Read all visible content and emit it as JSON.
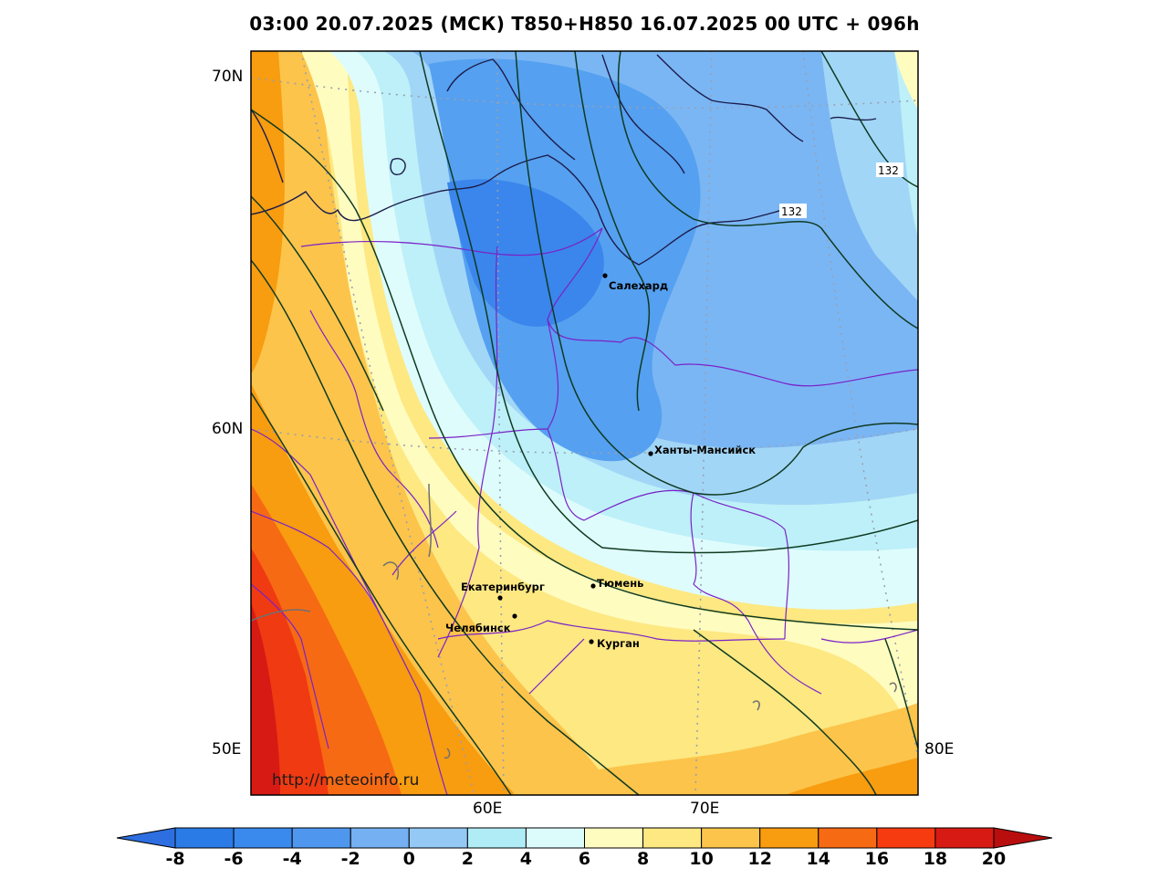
{
  "title": "03:00 20.07.2025 (МСК) T850+H850 16.07.2025 00 UTC + 096h",
  "axes": {
    "lat_labels": [
      "70N",
      "60N",
      "50E"
    ],
    "lon_labels_bottom": [
      "60E",
      "70E"
    ],
    "lon_label_right": "80E"
  },
  "cities": [
    {
      "name": "Салехард"
    },
    {
      "name": "Ханты-Мансийск"
    },
    {
      "name": "Екатеринбург"
    },
    {
      "name": "Тюмень"
    },
    {
      "name": "Челябинск"
    },
    {
      "name": "Курган"
    }
  ],
  "contour_labels": [
    "132",
    "132"
  ],
  "watermark": "http://meteoinfo.ru",
  "colorbar": {
    "ticks": [
      "-8",
      "-6",
      "-4",
      "-2",
      "0",
      "2",
      "4",
      "6",
      "8",
      "10",
      "12",
      "14",
      "16",
      "18",
      "20"
    ],
    "colors": [
      "#2b7be6",
      "#3a89ec",
      "#4f97ee",
      "#74b0f2",
      "#94c9f5",
      "#b0ecf6",
      "#dcfcfc",
      "#fffcc0",
      "#fde882",
      "#fcc44a",
      "#f89c10",
      "#f76a14",
      "#f63b10",
      "#d81a14"
    ],
    "under_color": "#2d6fe0",
    "over_color": "#b80e0e"
  },
  "field_colors": {
    "cold1": "#3a86ec",
    "cold2": "#55a0f0",
    "cool": "#7ab6f4",
    "light": "#a2d6f6",
    "cyan": "#bdf0f8",
    "pale": "#dffcfc",
    "cream": "#fffcc0",
    "yellow": "#fde882",
    "lorange": "#fcc44a",
    "orange": "#f89c10",
    "dorange": "#f76a14",
    "red": "#f03a12",
    "dred": "#d81a14"
  }
}
